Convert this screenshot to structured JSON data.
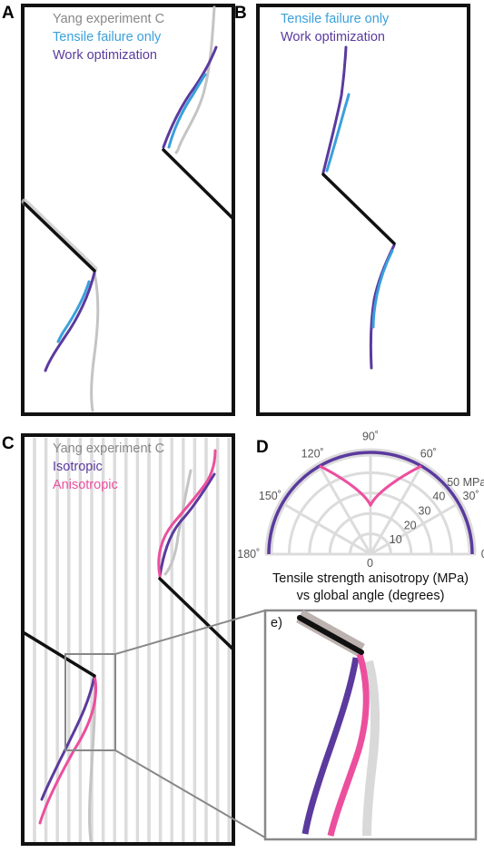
{
  "colors": {
    "yang": "#bdbdbd",
    "tensile": "#3aa0dc",
    "work": "#5b3a9e",
    "isotropic": "#5b3a9e",
    "anisotropic": "#ec4f9e",
    "crack": "#111111",
    "frame": "#111111",
    "grid": "#dcdcdc"
  },
  "panel_a": {
    "label": "A",
    "legend": [
      "Yang experiment C",
      "Tensile failure only",
      "Work optimization"
    ]
  },
  "panel_b": {
    "label": "B",
    "legend": [
      "Tensile failure only",
      "Work optimization"
    ]
  },
  "panel_c": {
    "label": "C",
    "legend": [
      "Yang experiment C",
      "Isotropic",
      "Anisotropic"
    ]
  },
  "panel_d": {
    "label": "D",
    "angle_labels": [
      "0˚",
      "30˚",
      "60˚",
      "90˚",
      "120˚",
      "150˚",
      "180˚"
    ],
    "radial_labels": [
      "0",
      "10",
      "20",
      "30",
      "40",
      "50 MPa"
    ],
    "caption_line1": "Tensile strength anisotropy (MPa)",
    "caption_line2": "vs global angle (degrees)"
  },
  "panel_e": {
    "label": "e)"
  },
  "chart_data": {
    "type": "polar",
    "radial_axis": {
      "range": [
        0,
        50
      ],
      "ticks": [
        0,
        10,
        20,
        30,
        40,
        50
      ],
      "unit": "MPa"
    },
    "angular_axis": {
      "range": [
        0,
        180
      ],
      "ticks": [
        0,
        30,
        60,
        90,
        120,
        150,
        180
      ],
      "unit": "degrees"
    },
    "caption": "Tensile strength anisotropy (MPa) vs global angle (degrees)",
    "series": [
      {
        "name": "Isotropic",
        "angle": [
          0,
          30,
          60,
          90,
          120,
          150,
          180
        ],
        "r": [
          50,
          50,
          50,
          50,
          50,
          50,
          50
        ]
      },
      {
        "name": "Anisotropic",
        "angle": [
          60,
          70,
          80,
          90,
          100,
          110,
          120
        ],
        "r": [
          44,
          36,
          26,
          24,
          26,
          36,
          44
        ]
      }
    ]
  }
}
